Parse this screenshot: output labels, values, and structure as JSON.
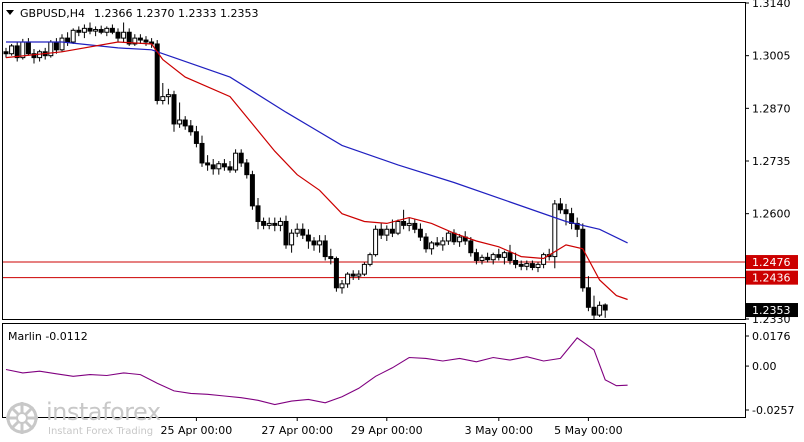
{
  "header": {
    "symbol": "GBPUSD,H4",
    "ohlc": "1.2366 1.2370 1.2333 1.2353"
  },
  "indicator": {
    "label": "Marlin -0.0112",
    "ticks": [
      "0.0176",
      "0.00",
      "-0.0257"
    ],
    "ylim": [
      -0.0257,
      0.0176
    ]
  },
  "watermark": {
    "brand": "instaforex",
    "tagline": "Instant Forex Trading"
  },
  "colors": {
    "bull": "#ffffff",
    "bear": "#000000",
    "fast_ma": "#cc0000",
    "slow_ma": "#2020c0",
    "levels": "#cc0000",
    "marlin": "#800080",
    "price_tag_bg": "#000000"
  },
  "chart_data": {
    "type": "candlestick",
    "ylim": [
      1.233,
      1.314
    ],
    "y_ticks": [
      "1.3140",
      "1.3005",
      "1.2870",
      "1.2735",
      "1.2600",
      "1.2330"
    ],
    "x_ticks": [
      "25 Apr 00:00",
      "27 Apr 00:00",
      "29 Apr 00:00",
      "3 May 00:00",
      "5 May 00:00"
    ],
    "levels": [
      {
        "value": 1.2476,
        "label": "1.2476"
      },
      {
        "value": 1.2436,
        "label": "1.2436"
      }
    ],
    "last_price": {
      "value": 1.2353,
      "label": "1.2353"
    },
    "candles": [
      [
        1.3015,
        1.3025,
        1.3,
        1.301
      ],
      [
        1.301,
        1.3035,
        1.3005,
        1.303
      ],
      [
        1.303,
        1.304,
        1.299,
        1.3
      ],
      [
        1.3,
        1.3048,
        1.2995,
        1.304
      ],
      [
        1.304,
        1.305,
        1.3005,
        1.301
      ],
      [
        1.301,
        1.3022,
        1.2985,
        1.3
      ],
      [
        1.3,
        1.302,
        1.299,
        1.3015
      ],
      [
        1.3015,
        1.3025,
        1.2995,
        1.3005
      ],
      [
        1.3005,
        1.3045,
        1.3,
        1.304
      ],
      [
        1.304,
        1.305,
        1.301,
        1.302
      ],
      [
        1.302,
        1.306,
        1.3015,
        1.305
      ],
      [
        1.305,
        1.3065,
        1.303,
        1.304
      ],
      [
        1.304,
        1.3075,
        1.3035,
        1.307
      ],
      [
        1.307,
        1.308,
        1.3055,
        1.3065
      ],
      [
        1.3065,
        1.3085,
        1.305,
        1.3075
      ],
      [
        1.3075,
        1.309,
        1.306,
        1.3068
      ],
      [
        1.3068,
        1.308,
        1.3055,
        1.3072
      ],
      [
        1.3072,
        1.3082,
        1.306,
        1.3065
      ],
      [
        1.3065,
        1.308,
        1.3055,
        1.3075
      ],
      [
        1.3075,
        1.3085,
        1.306,
        1.3065
      ],
      [
        1.3065,
        1.3075,
        1.304,
        1.305
      ],
      [
        1.305,
        1.309,
        1.304,
        1.3065
      ],
      [
        1.3065,
        1.3075,
        1.303,
        1.3035
      ],
      [
        1.3035,
        1.306,
        1.303,
        1.305
      ],
      [
        1.305,
        1.306,
        1.3035,
        1.3045
      ],
      [
        1.3045,
        1.3055,
        1.303,
        1.304
      ],
      [
        1.304,
        1.305,
        1.3025,
        1.3035
      ],
      [
        1.3035,
        1.3045,
        1.288,
        1.289
      ],
      [
        1.289,
        1.2935,
        1.288,
        1.29
      ],
      [
        1.29,
        1.292,
        1.288,
        1.2905
      ],
      [
        1.2905,
        1.2915,
        1.281,
        1.283
      ],
      [
        1.283,
        1.2885,
        1.282,
        1.284
      ],
      [
        1.284,
        1.285,
        1.2815,
        1.2825
      ],
      [
        1.2825,
        1.284,
        1.28,
        1.281
      ],
      [
        1.281,
        1.2825,
        1.277,
        1.278
      ],
      [
        1.278,
        1.28,
        1.272,
        1.273
      ],
      [
        1.273,
        1.275,
        1.271,
        1.2725
      ],
      [
        1.2725,
        1.274,
        1.27,
        1.2715
      ],
      [
        1.2715,
        1.2735,
        1.27,
        1.2728
      ],
      [
        1.2728,
        1.274,
        1.271,
        1.272
      ],
      [
        1.272,
        1.2735,
        1.2705,
        1.2712
      ],
      [
        1.2712,
        1.2765,
        1.2705,
        1.2755
      ],
      [
        1.2755,
        1.2765,
        1.272,
        1.273
      ],
      [
        1.273,
        1.274,
        1.269,
        1.27
      ],
      [
        1.27,
        1.271,
        1.261,
        1.262
      ],
      [
        1.262,
        1.264,
        1.256,
        1.258
      ],
      [
        1.258,
        1.259,
        1.256,
        1.257
      ],
      [
        1.257,
        1.259,
        1.256,
        1.2575
      ],
      [
        1.2575,
        1.259,
        1.2555,
        1.257
      ],
      [
        1.257,
        1.259,
        1.2555,
        1.258
      ],
      [
        1.258,
        1.2595,
        1.251,
        1.252
      ],
      [
        1.252,
        1.256,
        1.25,
        1.255
      ],
      [
        1.255,
        1.2575,
        1.254,
        1.256
      ],
      [
        1.256,
        1.2575,
        1.2535,
        1.2545
      ],
      [
        1.2545,
        1.256,
        1.251,
        1.253
      ],
      [
        1.253,
        1.254,
        1.2505,
        1.252
      ],
      [
        1.252,
        1.2545,
        1.25,
        1.253
      ],
      [
        1.253,
        1.2545,
        1.248,
        1.249
      ],
      [
        1.249,
        1.251,
        1.247,
        1.2485
      ],
      [
        1.2485,
        1.249,
        1.24,
        1.241
      ],
      [
        1.241,
        1.243,
        1.2395,
        1.242
      ],
      [
        1.242,
        1.245,
        1.241,
        1.2445
      ],
      [
        1.2445,
        1.2455,
        1.243,
        1.244
      ],
      [
        1.244,
        1.2455,
        1.243,
        1.2445
      ],
      [
        1.2445,
        1.2475,
        1.244,
        1.247
      ],
      [
        1.247,
        1.25,
        1.2465,
        1.2495
      ],
      [
        1.2495,
        1.257,
        1.249,
        1.256
      ],
      [
        1.256,
        1.2575,
        1.2535,
        1.2545
      ],
      [
        1.2545,
        1.257,
        1.253,
        1.256
      ],
      [
        1.256,
        1.2585,
        1.254,
        1.255
      ],
      [
        1.255,
        1.2585,
        1.2545,
        1.258
      ],
      [
        1.258,
        1.261,
        1.256,
        1.257
      ],
      [
        1.257,
        1.259,
        1.2555,
        1.2575
      ],
      [
        1.2575,
        1.2585,
        1.255,
        1.256
      ],
      [
        1.256,
        1.2575,
        1.253,
        1.254
      ],
      [
        1.254,
        1.255,
        1.25,
        1.251
      ],
      [
        1.251,
        1.253,
        1.2495,
        1.2525
      ],
      [
        1.2525,
        1.254,
        1.2515,
        1.252
      ],
      [
        1.252,
        1.254,
        1.2505,
        1.253
      ],
      [
        1.253,
        1.2555,
        1.252,
        1.255
      ],
      [
        1.255,
        1.256,
        1.252,
        1.2528
      ],
      [
        1.2528,
        1.2548,
        1.2515,
        1.254
      ],
      [
        1.254,
        1.2555,
        1.252,
        1.253
      ],
      [
        1.253,
        1.254,
        1.249,
        1.25
      ],
      [
        1.25,
        1.251,
        1.247,
        1.248
      ],
      [
        1.248,
        1.2495,
        1.247,
        1.2488
      ],
      [
        1.2488,
        1.25,
        1.2475,
        1.2482
      ],
      [
        1.2482,
        1.25,
        1.247,
        1.2495
      ],
      [
        1.2495,
        1.251,
        1.248,
        1.2488
      ],
      [
        1.2488,
        1.2505,
        1.247,
        1.25
      ],
      [
        1.25,
        1.252,
        1.247,
        1.248
      ],
      [
        1.248,
        1.25,
        1.246,
        1.247
      ],
      [
        1.247,
        1.248,
        1.2455,
        1.2465
      ],
      [
        1.2465,
        1.248,
        1.2455,
        1.2472
      ],
      [
        1.2472,
        1.248,
        1.2455,
        1.2462
      ],
      [
        1.2462,
        1.2475,
        1.245,
        1.247
      ],
      [
        1.247,
        1.25,
        1.246,
        1.2495
      ],
      [
        1.2495,
        1.251,
        1.248,
        1.249
      ],
      [
        1.249,
        1.2635,
        1.246,
        1.2625
      ],
      [
        1.2625,
        1.264,
        1.26,
        1.261
      ],
      [
        1.261,
        1.2625,
        1.257,
        1.26
      ],
      [
        1.26,
        1.2615,
        1.256,
        1.2575
      ],
      [
        1.2575,
        1.259,
        1.254,
        1.256
      ],
      [
        1.256,
        1.2575,
        1.24,
        1.241
      ],
      [
        1.241,
        1.244,
        1.235,
        1.236
      ],
      [
        1.236,
        1.239,
        1.233,
        1.234
      ],
      [
        1.234,
        1.2375,
        1.2335,
        1.2365
      ],
      [
        1.2366,
        1.237,
        1.2333,
        1.2353
      ]
    ],
    "fast_ma": [
      [
        0,
        1.3
      ],
      [
        10,
        1.3015
      ],
      [
        20,
        1.304
      ],
      [
        26,
        1.3035
      ],
      [
        28,
        1.2995
      ],
      [
        32,
        1.295
      ],
      [
        40,
        1.29
      ],
      [
        44,
        1.283
      ],
      [
        48,
        1.276
      ],
      [
        52,
        1.27
      ],
      [
        56,
        1.266
      ],
      [
        60,
        1.26
      ],
      [
        64,
        1.258
      ],
      [
        68,
        1.2575
      ],
      [
        72,
        1.259
      ],
      [
        76,
        1.2575
      ],
      [
        80,
        1.255
      ],
      [
        84,
        1.253
      ],
      [
        88,
        1.2515
      ],
      [
        92,
        1.249
      ],
      [
        96,
        1.2485
      ],
      [
        100,
        1.252
      ],
      [
        103,
        1.251
      ],
      [
        106,
        1.243
      ],
      [
        109,
        1.239
      ],
      [
        111,
        1.238
      ]
    ],
    "slow_ma": [
      [
        0,
        1.304
      ],
      [
        10,
        1.304
      ],
      [
        20,
        1.3025
      ],
      [
        26,
        1.302
      ],
      [
        30,
        1.3
      ],
      [
        40,
        1.295
      ],
      [
        50,
        1.286
      ],
      [
        60,
        1.2775
      ],
      [
        70,
        1.2725
      ],
      [
        80,
        1.268
      ],
      [
        90,
        1.263
      ],
      [
        100,
        1.258
      ],
      [
        106,
        1.256
      ],
      [
        111,
        1.2525
      ]
    ],
    "marlin": [
      [
        0,
        -0.002
      ],
      [
        3,
        -0.004
      ],
      [
        6,
        -0.003
      ],
      [
        9,
        -0.0045
      ],
      [
        12,
        -0.006
      ],
      [
        15,
        -0.005
      ],
      [
        18,
        -0.0055
      ],
      [
        21,
        -0.004
      ],
      [
        24,
        -0.005
      ],
      [
        27,
        -0.01
      ],
      [
        30,
        -0.0145
      ],
      [
        33,
        -0.016
      ],
      [
        36,
        -0.0165
      ],
      [
        39,
        -0.0175
      ],
      [
        42,
        -0.0185
      ],
      [
        45,
        -0.02
      ],
      [
        48,
        -0.0225
      ],
      [
        51,
        -0.0205
      ],
      [
        54,
        -0.0195
      ],
      [
        57,
        -0.0215
      ],
      [
        60,
        -0.018
      ],
      [
        63,
        -0.013
      ],
      [
        66,
        -0.006
      ],
      [
        69,
        -0.001
      ],
      [
        72,
        0.005
      ],
      [
        75,
        0.0045
      ],
      [
        78,
        0.003
      ],
      [
        81,
        0.0045
      ],
      [
        84,
        0.0025
      ],
      [
        87,
        0.005
      ],
      [
        90,
        0.0035
      ],
      [
        93,
        0.0055
      ],
      [
        96,
        0.003
      ],
      [
        99,
        0.0045
      ],
      [
        102,
        0.0165
      ],
      [
        105,
        0.0095
      ],
      [
        107,
        -0.008
      ],
      [
        109,
        -0.0115
      ],
      [
        111,
        -0.0112
      ]
    ]
  }
}
